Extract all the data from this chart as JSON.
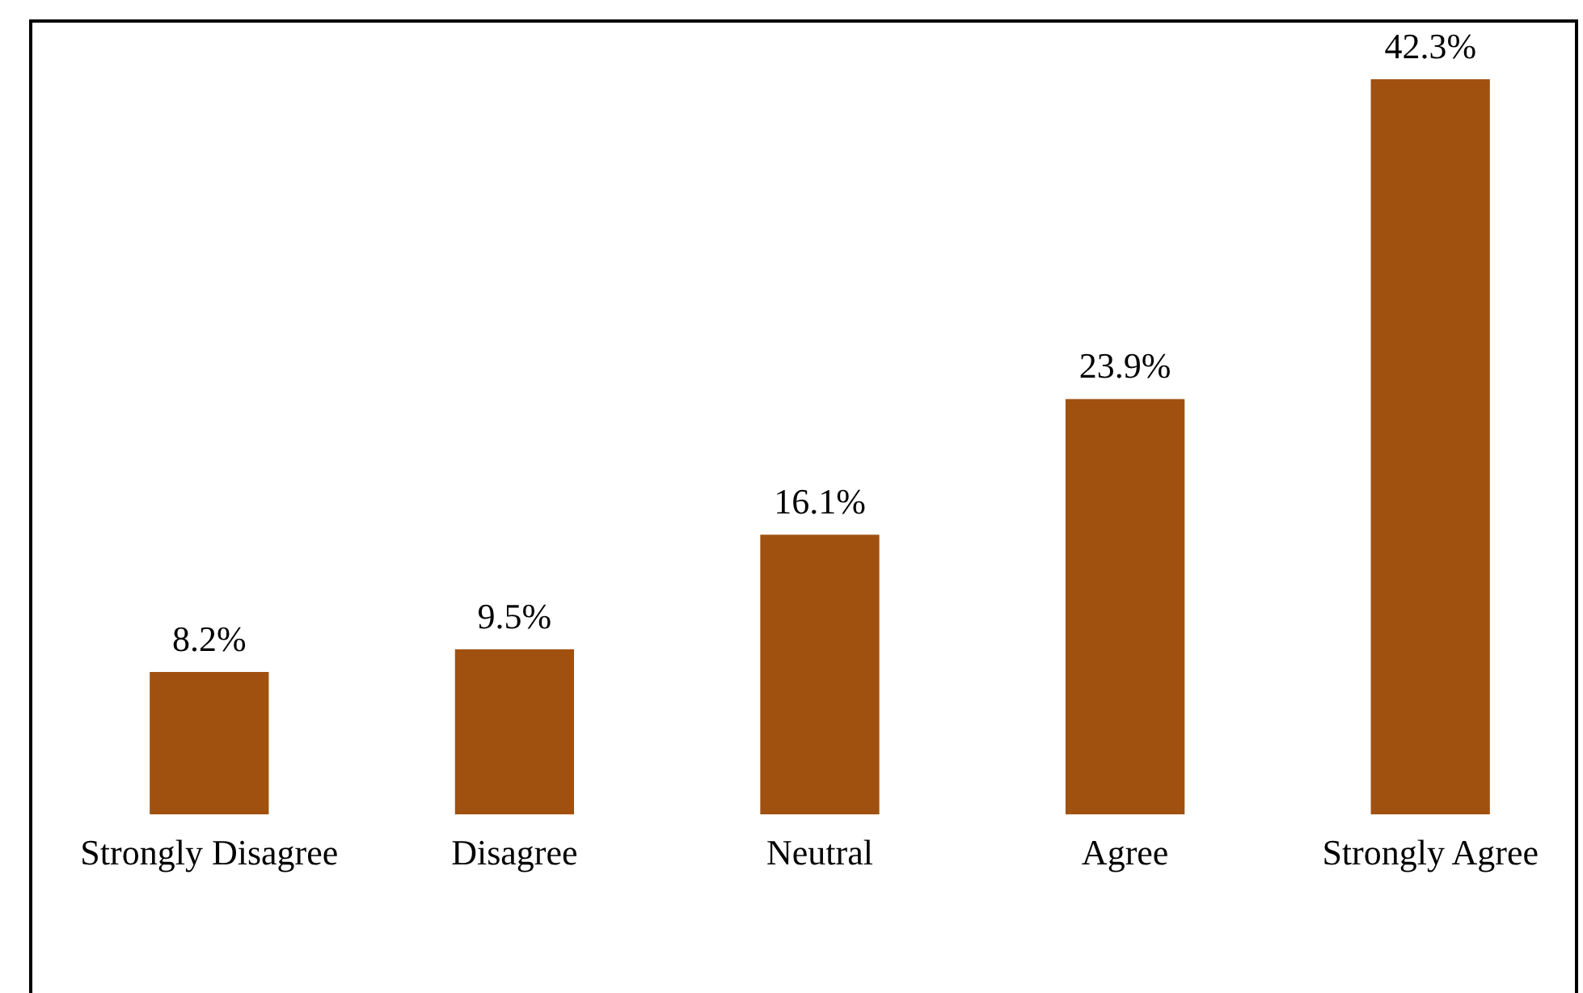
{
  "chart_data": {
    "type": "bar",
    "categories": [
      "Strongly Disagree",
      "Disagree",
      "Neutral",
      "Agree",
      "Strongly Agree"
    ],
    "values": [
      8.2,
      9.5,
      16.1,
      23.9,
      42.3
    ],
    "value_labels": [
      "8.2%",
      "9.5%",
      "16.1%",
      "23.9%",
      "42.3%"
    ],
    "color": "#a0510f",
    "grid": false,
    "legend": false,
    "tick_labels": "x"
  }
}
